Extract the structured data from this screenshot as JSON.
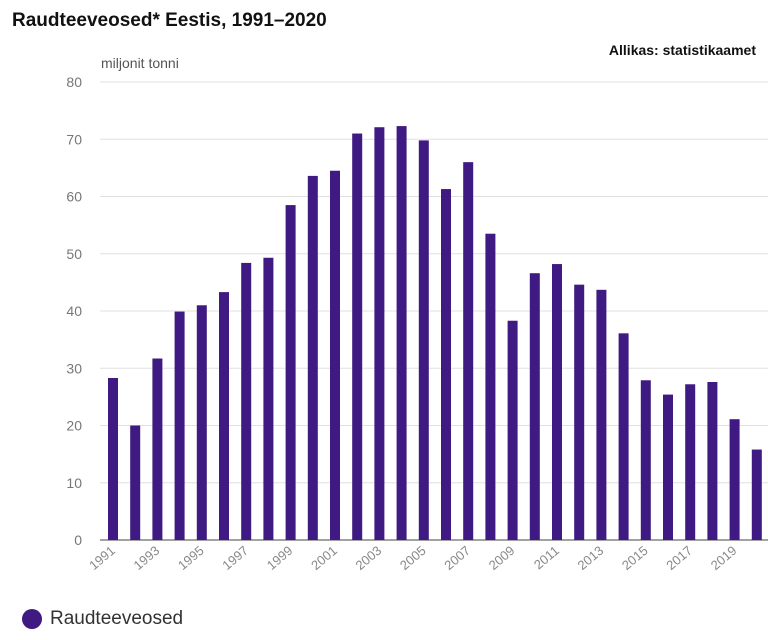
{
  "header": {
    "title": "Raudteeveosed* Eestis, 1991–2020",
    "source": "Allikas: statistikaamet"
  },
  "chart_data": {
    "type": "bar",
    "title": "Raudteeveosed* Eestis, 1991–2020",
    "ylabel": "miljonit tonni",
    "xlabel": "",
    "ylim": [
      0,
      80
    ],
    "yticks": [
      0,
      10,
      20,
      30,
      40,
      50,
      60,
      70,
      80
    ],
    "categories": [
      "1991",
      "1992",
      "1993",
      "1994",
      "1995",
      "1996",
      "1997",
      "1998",
      "1999",
      "2000",
      "2001",
      "2002",
      "2003",
      "2004",
      "2005",
      "2006",
      "2007",
      "2008",
      "2009",
      "2010",
      "2011",
      "2012",
      "2013",
      "2014",
      "2015",
      "2016",
      "2017",
      "2018",
      "2019",
      "2020"
    ],
    "xtick_labels": [
      "1991",
      "1993",
      "1995",
      "1997",
      "1999",
      "2001",
      "2003",
      "2005",
      "2007",
      "2009",
      "2011",
      "2013",
      "2015",
      "2017",
      "2019"
    ],
    "grid": true,
    "legend": "bottom-left",
    "series": [
      {
        "name": "Raudteeveosed",
        "color": "#3f1a82",
        "values": [
          28.3,
          20.0,
          31.7,
          39.9,
          41.0,
          43.3,
          48.4,
          49.3,
          58.5,
          63.6,
          64.5,
          71.0,
          72.1,
          72.3,
          69.8,
          61.3,
          66.0,
          53.5,
          38.3,
          46.6,
          48.2,
          44.6,
          43.7,
          36.1,
          27.9,
          25.4,
          27.2,
          27.6,
          21.1,
          15.8
        ]
      }
    ]
  }
}
